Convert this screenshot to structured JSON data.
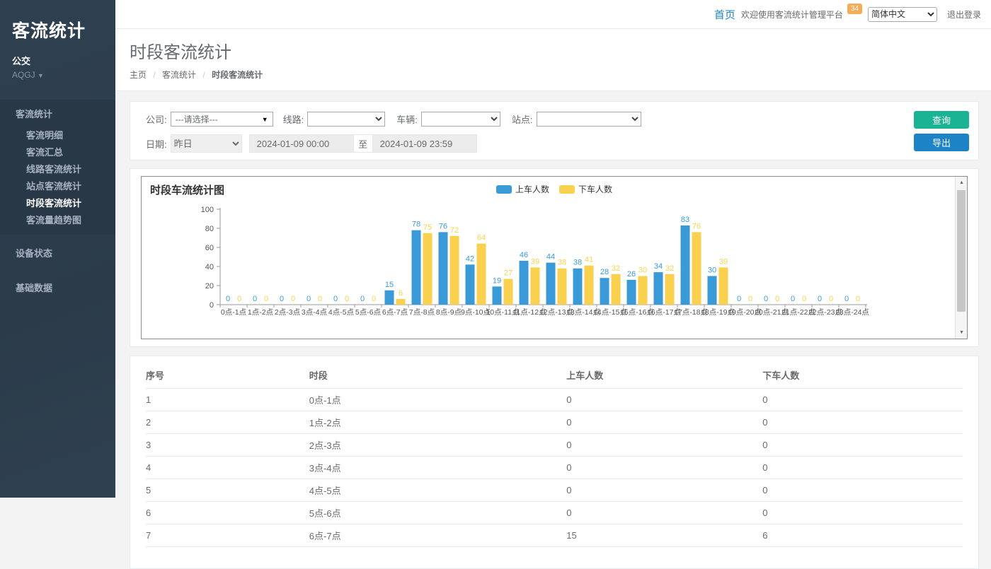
{
  "sidebar": {
    "brand": "客流统计",
    "org": "公交",
    "user": "AQGJ",
    "menu": {
      "section_label": "客流统计",
      "children": [
        "客流明细",
        "客流汇总",
        "线路客流统计",
        "站点客流统计",
        "时段客流统计",
        "客流量趋势图"
      ],
      "active_child": "时段客流统计",
      "other_items": [
        "设备状态",
        "基础数据"
      ]
    }
  },
  "topbar": {
    "home_link": "首页",
    "welcome": "欢迎使用客流统计管理平台",
    "badge": "34",
    "language_selected": "简体中文",
    "logout": "退出登录"
  },
  "page": {
    "title": "时段客流统计",
    "breadcrumb": [
      "主页",
      "客流统计",
      "时段客流统计"
    ]
  },
  "filters": {
    "company_label": "公司:",
    "company_value": "---请选择---",
    "line_label": "线路:",
    "line_value": "",
    "vehicle_label": "车辆:",
    "vehicle_value": "",
    "station_label": "站点:",
    "station_value": "",
    "date_label": "日期:",
    "date_preset": "昨日",
    "date_start": "2024-01-09 00:00",
    "date_join": "至",
    "date_end": "2024-01-09 23:59",
    "query_button": "查询",
    "export_button": "导出"
  },
  "chart_data": {
    "type": "bar",
    "title": "时段车流统计图",
    "categories": [
      "0点-1点",
      "1点-2点",
      "2点-3点",
      "3点-4点",
      "4点-5点",
      "5点-6点",
      "6点-7点",
      "7点-8点",
      "8点-9点",
      "9点-10点",
      "10点-11点",
      "11点-12点",
      "12点-13点",
      "13点-14点",
      "14点-15点",
      "15点-16点",
      "16点-17点",
      "17点-18点",
      "18点-19点",
      "19点-20点",
      "20点-21点",
      "21点-22点",
      "22点-23点",
      "23点-24点"
    ],
    "series": [
      {
        "name": "上车人数",
        "color": "#3a9ad7",
        "values": [
          0,
          0,
          0,
          0,
          0,
          0,
          15,
          78,
          76,
          42,
          19,
          46,
          44,
          38,
          28,
          26,
          34,
          83,
          30,
          0,
          0,
          0,
          0,
          0
        ]
      },
      {
        "name": "下车人数",
        "color": "#f9d14e",
        "values": [
          0,
          0,
          0,
          0,
          0,
          0,
          6,
          75,
          72,
          64,
          27,
          39,
          38,
          41,
          32,
          30,
          32,
          76,
          39,
          0,
          0,
          0,
          0,
          0
        ]
      }
    ],
    "xlabel": "",
    "ylabel": "",
    "ylim": [
      0,
      100
    ],
    "yticks": [
      0,
      20,
      40,
      60,
      80,
      100
    ],
    "grid": false,
    "legend_position": "top-center",
    "value_labels": true
  },
  "table": {
    "columns": [
      "序号",
      "时段",
      "上车人数",
      "下车人数"
    ],
    "rows": [
      [
        "1",
        "0点-1点",
        "0",
        "0"
      ],
      [
        "2",
        "1点-2点",
        "0",
        "0"
      ],
      [
        "3",
        "2点-3点",
        "0",
        "0"
      ],
      [
        "4",
        "3点-4点",
        "0",
        "0"
      ],
      [
        "5",
        "4点-5点",
        "0",
        "0"
      ],
      [
        "6",
        "5点-6点",
        "0",
        "0"
      ],
      [
        "7",
        "6点-7点",
        "15",
        "6"
      ]
    ]
  },
  "colors": {
    "sidebar_bg": "#2f4050",
    "sidebar_active_bg": "#293846",
    "sidebar_text": "#a7b1c2",
    "accent_blue": "#1c84c6",
    "accent_green": "#1ab394",
    "badge_orange": "#f8ac59",
    "bar_on": "#3a9ad7",
    "bar_off": "#f9d14e",
    "panel_border": "#e7eaec",
    "content_bg": "#f3f3f4"
  }
}
